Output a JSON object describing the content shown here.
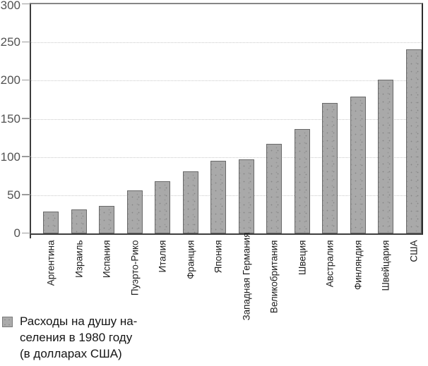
{
  "chart_data": {
    "type": "bar",
    "title": "",
    "xlabel": "",
    "ylabel": "",
    "categories": [
      "Аргентина",
      "Израиль",
      "Испания",
      "Пуэрто-Рико",
      "Италия",
      "Франция",
      "Япония",
      "Западная Германия",
      "Великобритания",
      "Швеция",
      "Австралия",
      "Финляндия",
      "Швейцария",
      "США"
    ],
    "values": [
      29,
      31,
      36,
      56,
      68,
      81,
      95,
      97,
      117,
      137,
      171,
      179,
      201,
      241
    ],
    "ylim": [
      0,
      300
    ],
    "yticks": [
      0,
      50,
      100,
      150,
      200,
      250,
      300
    ],
    "grid": "horizontal-dotted",
    "legend_position": "bottom-left",
    "legend": {
      "lines": [
        "Расходы на душу на-",
        "селения в 1980 году",
        "(в долларах США)"
      ]
    },
    "bar_color": "#a9a9a9",
    "bar_border_color": "#696969",
    "gridline_color": "#c9c9c9",
    "axis_color": "#3d3d3d"
  }
}
